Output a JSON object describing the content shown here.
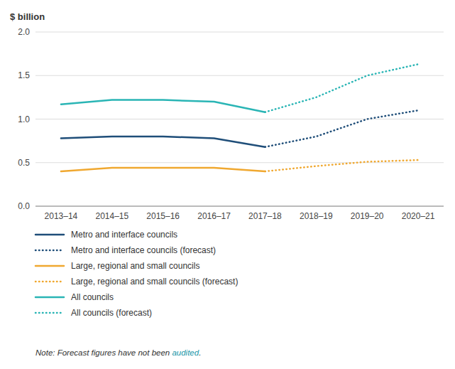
{
  "chart_data": {
    "type": "line",
    "y_label": "$ billion",
    "categories": [
      "2013–14",
      "2014–15",
      "2015–16",
      "2016–17",
      "2017–18",
      "2018–19",
      "2019–20",
      "2020–21"
    ],
    "series": [
      {
        "name": "Metro and interface councils",
        "color": "#1f4e79",
        "line_style": "solid",
        "values": [
          0.78,
          0.8,
          0.8,
          0.78,
          0.68,
          null,
          null,
          null
        ]
      },
      {
        "name": "Metro and interface councils (forecast)",
        "color": "#1f4e79",
        "line_style": "dotted",
        "values": [
          null,
          null,
          null,
          null,
          0.68,
          0.8,
          1.0,
          1.1
        ]
      },
      {
        "name": "Large, regional and small councils",
        "color": "#f0a830",
        "line_style": "solid",
        "values": [
          0.4,
          0.44,
          0.44,
          0.44,
          0.4,
          null,
          null,
          null
        ]
      },
      {
        "name": "Large, regional and small councils (forecast)",
        "color": "#f0a830",
        "line_style": "dotted",
        "values": [
          null,
          null,
          null,
          null,
          0.4,
          0.46,
          0.51,
          0.53
        ]
      },
      {
        "name": "All councils",
        "color": "#2ab5b5",
        "line_style": "solid",
        "values": [
          1.17,
          1.22,
          1.22,
          1.2,
          1.08,
          null,
          null,
          null
        ]
      },
      {
        "name": "All councils (forecast)",
        "color": "#2ab5b5",
        "line_style": "dotted",
        "values": [
          null,
          null,
          null,
          null,
          1.08,
          1.25,
          1.5,
          1.63
        ]
      }
    ],
    "ylim": [
      0.0,
      2.0
    ],
    "yticks": [
      {
        "value": 0.0,
        "label": "0.0"
      },
      0.5,
      {
        "value": 1.0,
        "label": "1.0"
      },
      1.5,
      {
        "value": 2.0,
        "label": "2.0"
      }
    ],
    "grid": true,
    "legend": "bottom",
    "annotations": [
      {
        "text": "Note: Forecast figures have not been "
      },
      {
        "text": "audited",
        "color": "#2196a8"
      },
      {
        "text": "."
      }
    ]
  }
}
